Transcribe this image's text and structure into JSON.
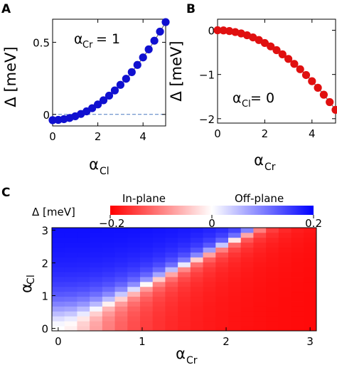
{
  "chart_data": [
    {
      "panel": "A",
      "type": "scatter",
      "xlabel": "α",
      "xlabel_sub": "Cl",
      "ylabel": "Δ [meV]",
      "annotation": {
        "symbol": "α",
        "sub": "Cr",
        "rest": " = 1"
      },
      "xlim": [
        0,
        5
      ],
      "ylim": [
        -0.08,
        0.66
      ],
      "xticks": [
        "0",
        "2",
        "4"
      ],
      "xtick_values": [
        0,
        2,
        4
      ],
      "yticks": [
        "0",
        "0.5"
      ],
      "ytick_values": [
        0,
        0.5
      ],
      "reference_line": {
        "y": 0,
        "style": "dashed"
      },
      "marker_color": "#1010d0",
      "curve": {
        "a": -0.04,
        "b": 0.0272
      },
      "x": [
        0,
        0.25,
        0.5,
        0.75,
        1.0,
        1.25,
        1.5,
        1.75,
        2.0,
        2.25,
        2.5,
        2.75,
        3.0,
        3.25,
        3.5,
        3.75,
        4.0,
        4.25,
        4.5,
        4.75,
        5.0
      ],
      "y": [
        -0.04,
        -0.038,
        -0.033,
        -0.025,
        -0.013,
        0.003,
        0.021,
        0.043,
        0.069,
        0.098,
        0.13,
        0.166,
        0.205,
        0.247,
        0.293,
        0.343,
        0.395,
        0.451,
        0.511,
        0.574,
        0.64
      ]
    },
    {
      "panel": "B",
      "type": "scatter",
      "xlabel": "α",
      "xlabel_sub": "Cr",
      "ylabel": "Δ [meV]",
      "annotation": {
        "symbol": "α",
        "sub": "Cl",
        "rest": " = 0"
      },
      "xlim": [
        0,
        5
      ],
      "ylim": [
        -2.1,
        0.25
      ],
      "xticks": [
        "0",
        "2",
        "4"
      ],
      "xtick_values": [
        0,
        2,
        4
      ],
      "yticks": [
        "0",
        "−1",
        "−2"
      ],
      "ytick_values": [
        0,
        -1,
        -2
      ],
      "marker_color": "#e01010",
      "curve": {
        "a": 0.0,
        "b": -0.072
      },
      "x": [
        0,
        0.25,
        0.5,
        0.75,
        1.0,
        1.25,
        1.5,
        1.75,
        2.0,
        2.25,
        2.5,
        2.75,
        3.0,
        3.25,
        3.5,
        3.75,
        4.0,
        4.25,
        4.5,
        4.75,
        5.0
      ],
      "y": [
        0.0,
        -0.004,
        -0.018,
        -0.041,
        -0.072,
        -0.113,
        -0.162,
        -0.221,
        -0.288,
        -0.365,
        -0.45,
        -0.545,
        -0.648,
        -0.761,
        -0.882,
        -1.013,
        -1.152,
        -1.301,
        -1.458,
        -1.625,
        -1.8
      ]
    },
    {
      "panel": "C",
      "type": "heatmap",
      "xlabel": "α",
      "xlabel_sub": "Cr",
      "ylabel": "α",
      "ylabel_sub": "Cl",
      "xlim": [
        -0.075,
        3.075
      ],
      "ylim": [
        -0.075,
        3.075
      ],
      "xticks": [
        "0",
        "1",
        "2",
        "3"
      ],
      "xtick_values": [
        0,
        1,
        2,
        3
      ],
      "yticks": [
        "0",
        "1",
        "2",
        "3"
      ],
      "ytick_values": [
        0,
        1,
        2,
        3
      ],
      "grid_step": 0.15,
      "grid_count": 21,
      "model": "Δ = 0.2·(0.6·α_Cl² − α_Cr²)/(0.6·α_Cl² − α_Cr² + 0.35), clipped to [−0.2, 0.2]",
      "colorbar": {
        "label": "Δ [meV]",
        "left_label": "In-plane",
        "right_label": "Off-plane",
        "range": [
          -0.2,
          0.2
        ],
        "ticks": [
          "−0.2",
          "0",
          "0.2"
        ],
        "tick_values": [
          -0.2,
          0,
          0.2
        ],
        "colors": {
          "negative": "#ff0000",
          "zero": "#ffffff",
          "positive": "#0000ff"
        }
      }
    }
  ],
  "panel_labels": [
    "A",
    "B",
    "C"
  ]
}
